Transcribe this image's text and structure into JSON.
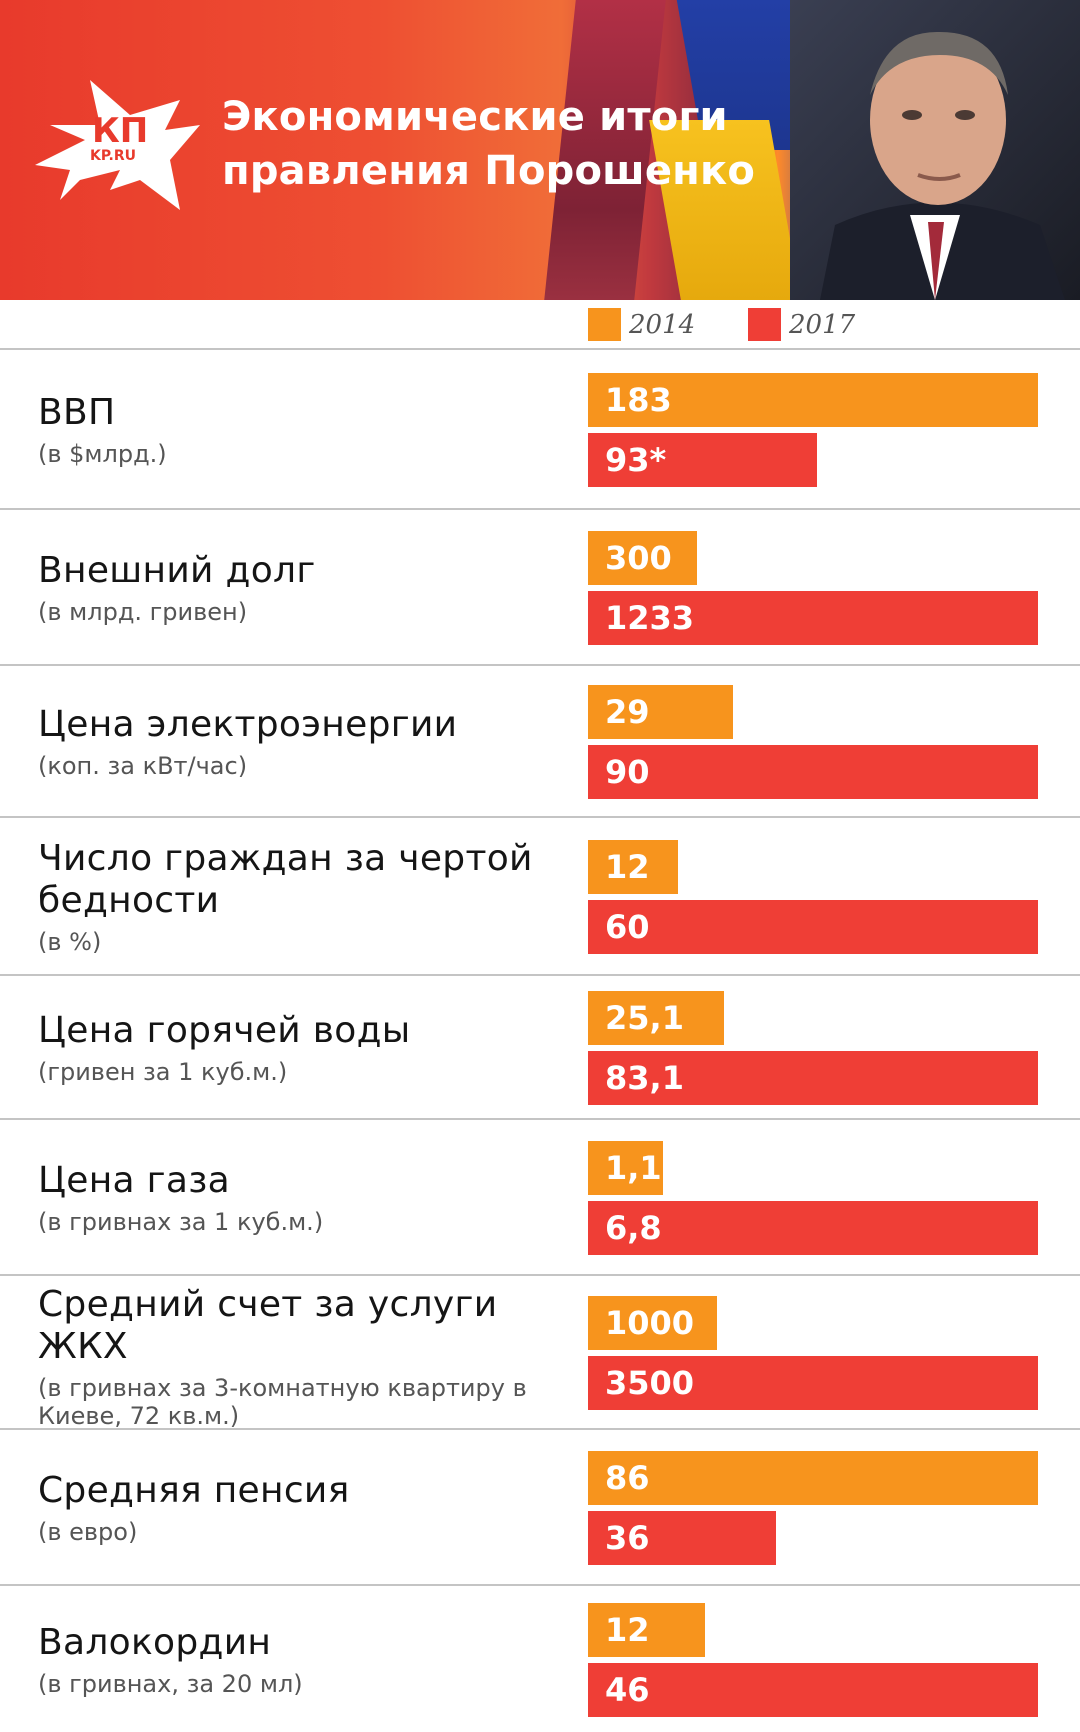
{
  "header": {
    "title_line1": "Экономические итоги",
    "title_line2": "правления Порошенко",
    "logo_text": "КП",
    "logo_subtext": "KP.RU"
  },
  "colors": {
    "series_2014": "#f7941d",
    "series_2017": "#ef3e36"
  },
  "chart_data": {
    "type": "bar",
    "orientation": "horizontal",
    "title": "Экономические итоги правления Порошенко",
    "series_names": [
      "2014",
      "2017"
    ],
    "legend_position": "top",
    "grid": false,
    "categories": [
      {
        "label": "ВВП",
        "unit": "(в $млрд.)",
        "values": [
          183,
          93
        ],
        "value_labels": [
          "183",
          "93*"
        ]
      },
      {
        "label": "Внешний долг",
        "unit": "(в млрд. гривен)",
        "values": [
          300,
          1233
        ],
        "value_labels": [
          "300",
          "1233"
        ]
      },
      {
        "label": "Цена электроэнергии",
        "unit": "(коп. за кВт/час)",
        "values": [
          29,
          90
        ],
        "value_labels": [
          "29",
          "90"
        ]
      },
      {
        "label": "Число граждан за чертой бедности",
        "unit": "(в %)",
        "values": [
          12,
          60
        ],
        "value_labels": [
          "12",
          "60"
        ]
      },
      {
        "label": "Цена горячей воды",
        "unit": "(гривен за 1 куб.м.)",
        "values": [
          25.1,
          83.1
        ],
        "value_labels": [
          "25,1",
          "83,1"
        ]
      },
      {
        "label": "Цена газа",
        "unit": "(в гривнах за 1 куб.м.)",
        "values": [
          1.1,
          6.8
        ],
        "value_labels": [
          "1,1",
          "6,8"
        ]
      },
      {
        "label": "Средний счет за услуги ЖКХ",
        "unit": "(в гривнах за 3-комнатную квартиру в Киеве, 72 кв.м.)",
        "values": [
          1000,
          3500
        ],
        "value_labels": [
          "1000",
          "3500"
        ]
      },
      {
        "label": "Средняя пенсия",
        "unit": "(в евро)",
        "values": [
          86,
          36
        ],
        "value_labels": [
          "86",
          "36"
        ]
      },
      {
        "label": "Валокордин",
        "unit": "(в гривнах, за 20 мл)",
        "values": [
          12,
          46
        ],
        "value_labels": [
          "12",
          "46"
        ]
      }
    ]
  }
}
